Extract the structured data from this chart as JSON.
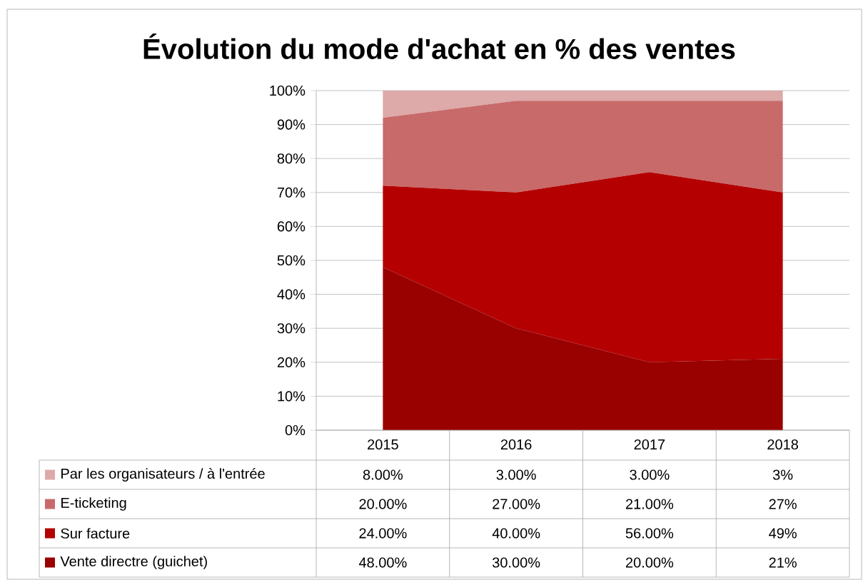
{
  "chart_data": {
    "type": "area",
    "title": "Évolution du mode d'achat en % des ventes",
    "categories": [
      "2015",
      "2016",
      "2017",
      "2018"
    ],
    "stacked": true,
    "series": [
      {
        "name": "Vente directre (guichet)",
        "color": "#990000",
        "values": [
          48,
          30,
          20,
          21
        ],
        "value_labels": [
          "48.00%",
          "30.00%",
          "20.00%",
          "21%"
        ]
      },
      {
        "name": "Sur facture",
        "color": "#b40000",
        "values": [
          24,
          40,
          56,
          49
        ],
        "value_labels": [
          "24.00%",
          "40.00%",
          "56.00%",
          "49%"
        ]
      },
      {
        "name": "E-ticketing",
        "color": "#c86a6a",
        "values": [
          20,
          27,
          21,
          27
        ],
        "value_labels": [
          "20.00%",
          "27.00%",
          "21.00%",
          "27%"
        ]
      },
      {
        "name": "Par les organisateurs / à l'entrée",
        "color": "#dda9a9",
        "values": [
          8,
          3,
          3,
          3
        ],
        "value_labels": [
          "8.00%",
          "3.00%",
          "3.00%",
          "3%"
        ]
      }
    ],
    "ylim": [
      0,
      100
    ],
    "yticks": [
      {
        "value": 0,
        "label": "0%"
      },
      {
        "value": 10,
        "label": "10%"
      },
      {
        "value": 20,
        "label": "20%"
      },
      {
        "value": 30,
        "label": "30%"
      },
      {
        "value": 40,
        "label": "40%"
      },
      {
        "value": 50,
        "label": "50%"
      },
      {
        "value": 60,
        "label": "60%"
      },
      {
        "value": 70,
        "label": "70%"
      },
      {
        "value": 80,
        "label": "80%"
      },
      {
        "value": 90,
        "label": "90%"
      },
      {
        "value": 100,
        "label": "100%"
      }
    ],
    "grid": "y",
    "legend": "bottom"
  }
}
